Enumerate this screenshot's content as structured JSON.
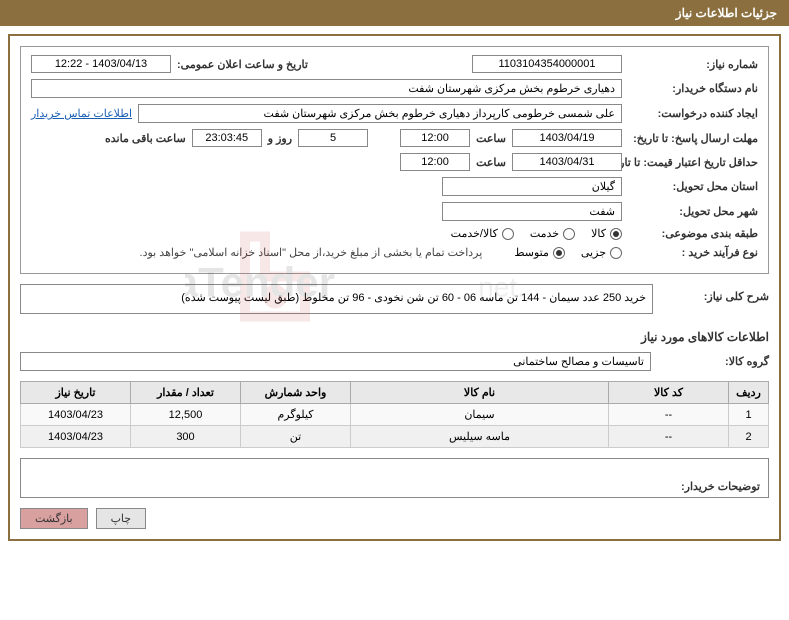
{
  "header": {
    "title": "جزئیات اطلاعات نیاز"
  },
  "form": {
    "need_no_label": "شماره نیاز:",
    "need_no": "1103104354000001",
    "announce_label": "تاریخ و ساعت اعلان عمومی:",
    "announce_value": "1403/04/13 - 12:22",
    "buyer_org_label": "نام دستگاه خریدار:",
    "buyer_org": "دهیاری خرطوم بخش مرکزی شهرستان شفت",
    "requester_label": "ایجاد کننده درخواست:",
    "requester": "علی شمسی خرطومی کارپرداز دهیاری خرطوم بخش مرکزی شهرستان شفت",
    "contact_link": "اطلاعات تماس خریدار",
    "deadline_label": "مهلت ارسال پاسخ: تا تاریخ:",
    "deadline_date": "1403/04/19",
    "time_label": "ساعت",
    "deadline_time": "12:00",
    "days_sep": "روز و",
    "days_remaining": "5",
    "countdown": "23:03:45",
    "remaining_label": "ساعت باقی مانده",
    "validity_label": "حداقل تاریخ اعتبار قیمت: تا تاریخ:",
    "validity_date": "1403/04/31",
    "validity_time": "12:00",
    "province_label": "استان محل تحویل:",
    "province": "گیلان",
    "city_label": "شهر محل تحویل:",
    "city": "شفت",
    "category_label": "طبقه بندی موضوعی:",
    "cat_goods": "کالا",
    "cat_service": "خدمت",
    "cat_both": "کالا/خدمت",
    "purchase_type_label": "نوع فرآیند خرید :",
    "type_small": "جزیی",
    "type_medium": "متوسط",
    "payment_note": "پرداخت تمام یا بخشی از مبلغ خرید،از محل \"اسناد خزانه اسلامی\" خواهد بود."
  },
  "need": {
    "summary_label": "شرح کلی نیاز:",
    "summary": "خرید 250 عدد سیمان - 144 تن ماسه 06 - 60 تن شن نخودی - 96 تن مخلوط (طبق لیست پیوست شده)",
    "goods_info_title": "اطلاعات کالاهای مورد نیاز",
    "group_label": "گروه کالا:",
    "group_value": "تاسیسات و مصالح ساختمانی"
  },
  "table": {
    "headers": {
      "idx": "ردیف",
      "code": "کد کالا",
      "name": "نام کالا",
      "unit": "واحد شمارش",
      "qty": "تعداد / مقدار",
      "date": "تاریخ نیاز"
    },
    "rows": [
      {
        "idx": "1",
        "code": "--",
        "name": "سیمان",
        "unit": "کیلوگرم",
        "qty": "12,500",
        "date": "1403/04/23"
      },
      {
        "idx": "2",
        "code": "--",
        "name": "ماسه سیلیس",
        "unit": "تن",
        "qty": "300",
        "date": "1403/04/23"
      }
    ]
  },
  "desc": {
    "label": "توضیحات خریدار:"
  },
  "buttons": {
    "print": "چاپ",
    "back": "بازگشت"
  },
  "watermark": {
    "text": "AriaTender.net"
  }
}
